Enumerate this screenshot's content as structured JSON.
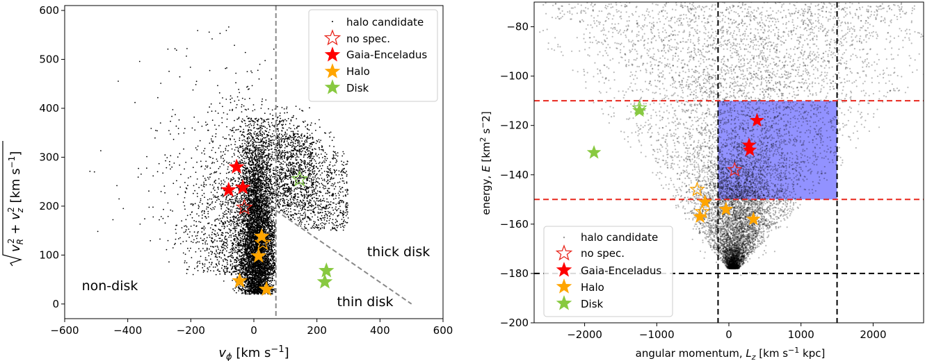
{
  "chart_data": [
    {
      "type": "scatter",
      "xlim": [
        -600,
        600
      ],
      "ylim": [
        -30,
        610
      ],
      "xticks": [
        -600,
        -400,
        -200,
        0,
        200,
        400,
        600
      ],
      "yticks": [
        0,
        100,
        200,
        300,
        400,
        500,
        600
      ],
      "xlabel": "v_φ [km s⁻¹]",
      "ylabel": "√(v_R² + v_z²) [km s⁻¹]",
      "grid": false,
      "legend_position": "top-right",
      "legend": [
        "halo candidate",
        "no spec.",
        "Gaia-Enceladus",
        "Halo",
        "Disk"
      ],
      "vertical_line_x": 70,
      "diagonal_line": {
        "from": [
          50,
          200
        ],
        "to": [
          500,
          0
        ]
      },
      "region_labels": [
        "non-disk",
        "thick disk",
        "thin disk"
      ],
      "series": [
        {
          "name": "halo candidate",
          "marker": "dot",
          "color": "#000000",
          "description": "dense cloud of ~10000 stars"
        },
        {
          "name": "no spec.",
          "marker": "open-star",
          "color": "#e8261c",
          "x": [
            -30
          ],
          "y": [
            197
          ]
        },
        {
          "name": "no spec. (disk)",
          "marker": "open-star",
          "color": "#7fc843",
          "x": [
            145
          ],
          "y": [
            255
          ]
        },
        {
          "name": "no spec. (halo)",
          "marker": "open-star",
          "color": "#ffa500",
          "x": [
            28
          ],
          "y": [
            125
          ]
        },
        {
          "name": "Gaia-Enceladus",
          "marker": "star",
          "color": "#ff0000",
          "x": [
            -55,
            -80,
            -35
          ],
          "y": [
            280,
            233,
            238
          ]
        },
        {
          "name": "Halo",
          "marker": "star",
          "color": "#ffa500",
          "x": [
            25,
            15,
            -45,
            40
          ],
          "y": [
            138,
            98,
            47,
            30
          ]
        },
        {
          "name": "Disk",
          "marker": "star",
          "color": "#88c940",
          "x": [
            230,
            225
          ],
          "y": [
            68,
            45
          ]
        }
      ]
    },
    {
      "type": "scatter",
      "xlim": [
        -2700,
        2700
      ],
      "ylim": [
        -200,
        -70
      ],
      "xticks": [
        -2000,
        -1000,
        0,
        1000,
        2000
      ],
      "yticks": [
        -200,
        -180,
        -160,
        -140,
        -120,
        -100,
        -80
      ],
      "xlabel": "angular momentum, L_z [km s⁻¹ kpc]",
      "ylabel": "energy, E [km² s⁻2]",
      "grid": false,
      "legend_position": "bottom-left",
      "legend": [
        "halo candidate",
        "no spec.",
        "Gaia-Enceladus",
        "Halo",
        "Disk"
      ],
      "red_dashed_y": [
        -110,
        -150
      ],
      "black_dashed_x": [
        -150,
        1500
      ],
      "black_dashed_y": [
        -180
      ],
      "shaded_box": {
        "x": [
          -150,
          1500
        ],
        "y": [
          -150,
          -110
        ],
        "color": "#8c8cff"
      },
      "series": [
        {
          "name": "halo candidate",
          "marker": "dot",
          "color": "#808080",
          "description": "dense cloud of ~10000 stars"
        },
        {
          "name": "no spec.",
          "marker": "open-star",
          "color": "#e8261c",
          "x": [
            80
          ],
          "y": [
            -138
          ]
        },
        {
          "name": "no spec. (disk)",
          "marker": "open-star",
          "color": "#7fc843",
          "x": [
            -1240
          ],
          "y": [
            -113
          ]
        },
        {
          "name": "no spec. (halo)",
          "marker": "open-star",
          "color": "#ffa500",
          "x": [
            -440,
            -370
          ],
          "y": [
            -146,
            -155
          ]
        },
        {
          "name": "Gaia-Enceladus",
          "marker": "star",
          "color": "#ff0000",
          "x": [
            390,
            280,
            290
          ],
          "y": [
            -118,
            -128,
            -130
          ]
        },
        {
          "name": "Halo",
          "marker": "star",
          "color": "#ffa500",
          "x": [
            -330,
            -40,
            340,
            -400
          ],
          "y": [
            -151,
            -154,
            -158,
            -157
          ]
        },
        {
          "name": "Disk",
          "marker": "star",
          "color": "#88c940",
          "x": [
            -1870,
            -1240
          ],
          "y": [
            -131,
            -114
          ]
        }
      ]
    }
  ]
}
